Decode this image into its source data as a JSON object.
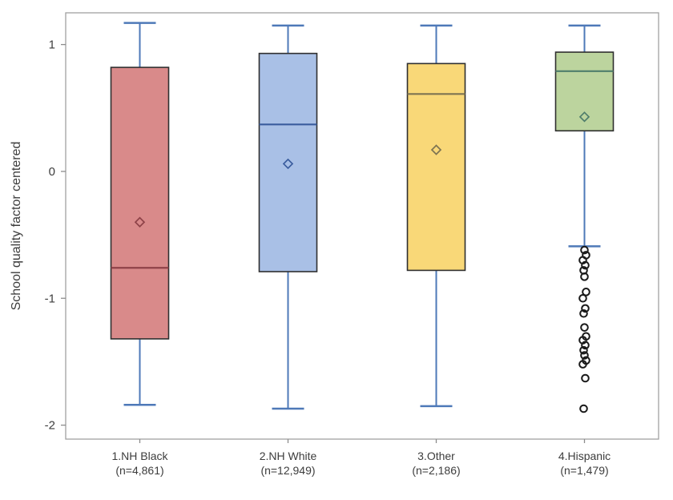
{
  "figure": {
    "background": "#FFFFFF"
  },
  "chart_data": {
    "type": "box",
    "title": "",
    "xlabel": "",
    "ylabel": "School quality factor centered",
    "ylim": [
      -2.11,
      1.25
    ],
    "yticks": [
      1,
      0,
      -1,
      -2
    ],
    "grid": false,
    "legend": "none",
    "style": {
      "whisker_color": "#4E79B8",
      "box_border_color": "#2F2F2F",
      "outlier_color": "#1A1A1A",
      "axis_color": "#A0A0A0",
      "tick_color": "#8C8C8C",
      "tick_label_color": "#3D3D3D"
    },
    "groups": [
      {
        "label": "1.NH Black",
        "sublabel": "(n=4,861)",
        "fill": "#D98A8A",
        "accent": "#8E4248",
        "whisker_low": -1.84,
        "q1": -1.32,
        "median": -0.76,
        "q3": 0.82,
        "whisker_high": 1.17,
        "mean": -0.4,
        "outliers": []
      },
      {
        "label": "2.NH White",
        "sublabel": "(n=12,949)",
        "fill": "#A9C0E6",
        "accent": "#3A5C9E",
        "whisker_low": -1.87,
        "q1": -0.79,
        "median": 0.37,
        "q3": 0.93,
        "whisker_high": 1.15,
        "mean": 0.06,
        "outliers": []
      },
      {
        "label": "3.Other",
        "sublabel": "(n=2,186)",
        "fill": "#F9D878",
        "accent": "#7E7452",
        "whisker_low": -1.85,
        "q1": -0.78,
        "median": 0.61,
        "q3": 0.85,
        "whisker_high": 1.15,
        "mean": 0.17,
        "outliers": []
      },
      {
        "label": "4.Hispanic",
        "sublabel": "(n=1,479)",
        "fill": "#BCD49E",
        "accent": "#4F7D6B",
        "whisker_low": -0.59,
        "q1": 0.32,
        "median": 0.79,
        "q3": 0.94,
        "whisker_high": 1.15,
        "mean": 0.43,
        "outliers": [
          -0.62,
          -0.66,
          -0.7,
          -0.74,
          -0.78,
          -0.83,
          -0.95,
          -1.0,
          -1.08,
          -1.12,
          -1.23,
          -1.3,
          -1.33,
          -1.37,
          -1.41,
          -1.45,
          -1.49,
          -1.52,
          -1.63,
          -1.87
        ]
      }
    ]
  }
}
